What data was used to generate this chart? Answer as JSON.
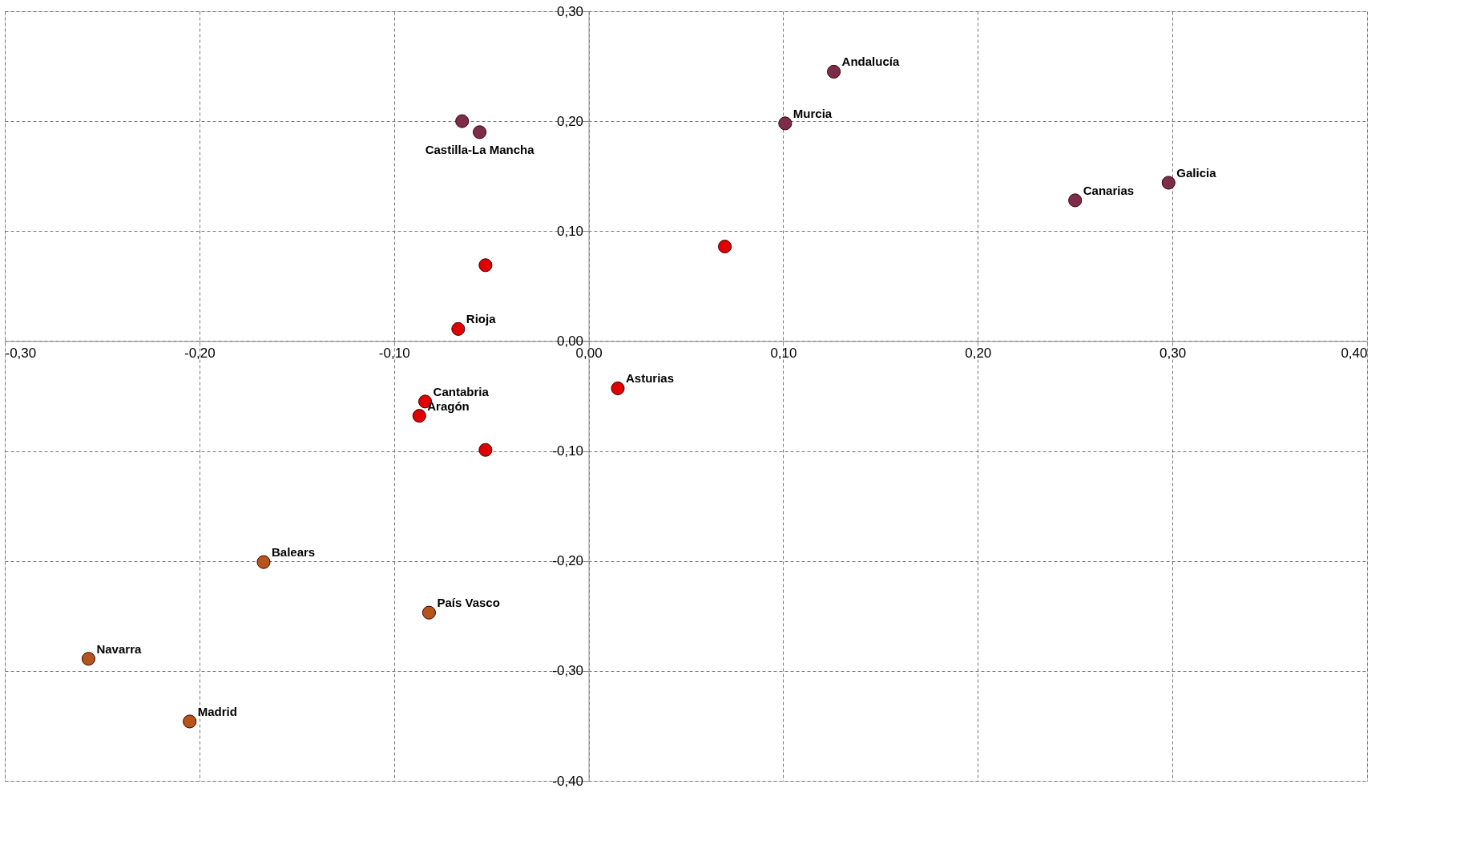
{
  "chart_data": {
    "type": "scatter",
    "xlim": [
      -0.3,
      0.4
    ],
    "ylim": [
      -0.4,
      0.3
    ],
    "xticks": [
      {
        "value": -0.3,
        "label": "-0,30"
      },
      {
        "value": -0.2,
        "label": "-0,20"
      },
      {
        "value": -0.1,
        "label": "-0,10"
      },
      {
        "value": 0,
        "label": "0,00"
      },
      {
        "value": 0.1,
        "label": "0,10"
      },
      {
        "value": 0.2,
        "label": "0,20"
      },
      {
        "value": 0.3,
        "label": "0,30"
      },
      {
        "value": 0.4,
        "label": "0,40"
      }
    ],
    "yticks": [
      {
        "value": -0.4,
        "label": "-0,40"
      },
      {
        "value": -0.3,
        "label": "-0,30"
      },
      {
        "value": -0.2,
        "label": "-0,20"
      },
      {
        "value": -0.1,
        "label": "-0,10"
      },
      {
        "value": 0,
        "label": "0,00"
      },
      {
        "value": 0.1,
        "label": "0,10"
      },
      {
        "value": 0.2,
        "label": "0,20"
      },
      {
        "value": 0.3,
        "label": "0,30"
      }
    ],
    "grid": true,
    "marker": "circle",
    "series": [
      {
        "color": "#7b2d4a",
        "x": [
          0.126,
          0.101,
          -0.065,
          -0.056,
          0.298,
          0.25
        ],
        "values": [
          0.245,
          0.198,
          0.2,
          0.19,
          0.144,
          0.128
        ]
      },
      {
        "color": "#e00000",
        "x": [
          0.07,
          -0.053,
          -0.067,
          -0.084,
          -0.087,
          0.015,
          -0.053
        ],
        "values": [
          0.086,
          0.069,
          0.011,
          -0.055,
          -0.068,
          -0.043,
          -0.099
        ]
      },
      {
        "color": "#b5541b",
        "x": [
          -0.167,
          -0.082,
          -0.257,
          -0.205
        ],
        "values": [
          -0.201,
          -0.247,
          -0.289,
          -0.346
        ]
      }
    ],
    "annotations": [
      {
        "text": "Andalucía",
        "x": 0.126,
        "y": 0.245
      },
      {
        "text": "Murcia",
        "x": 0.101,
        "y": 0.198
      },
      {
        "text": "Castilla-La Mancha",
        "x": -0.056,
        "y": 0.19
      },
      {
        "text": "Galicia",
        "x": 0.298,
        "y": 0.144
      },
      {
        "text": "Canarias",
        "x": 0.25,
        "y": 0.128
      },
      {
        "text": "Rioja",
        "x": -0.067,
        "y": 0.011
      },
      {
        "text": "Cantabria",
        "x": -0.084,
        "y": -0.055
      },
      {
        "text": "Aragón",
        "x": -0.087,
        "y": -0.068
      },
      {
        "text": "Asturias",
        "x": 0.015,
        "y": -0.043
      },
      {
        "text": "Balears",
        "x": -0.167,
        "y": -0.201
      },
      {
        "text": "País Vasco",
        "x": -0.082,
        "y": -0.247
      },
      {
        "text": "Navarra",
        "x": -0.257,
        "y": -0.289
      },
      {
        "text": "Madrid",
        "x": -0.205,
        "y": -0.346
      }
    ]
  }
}
